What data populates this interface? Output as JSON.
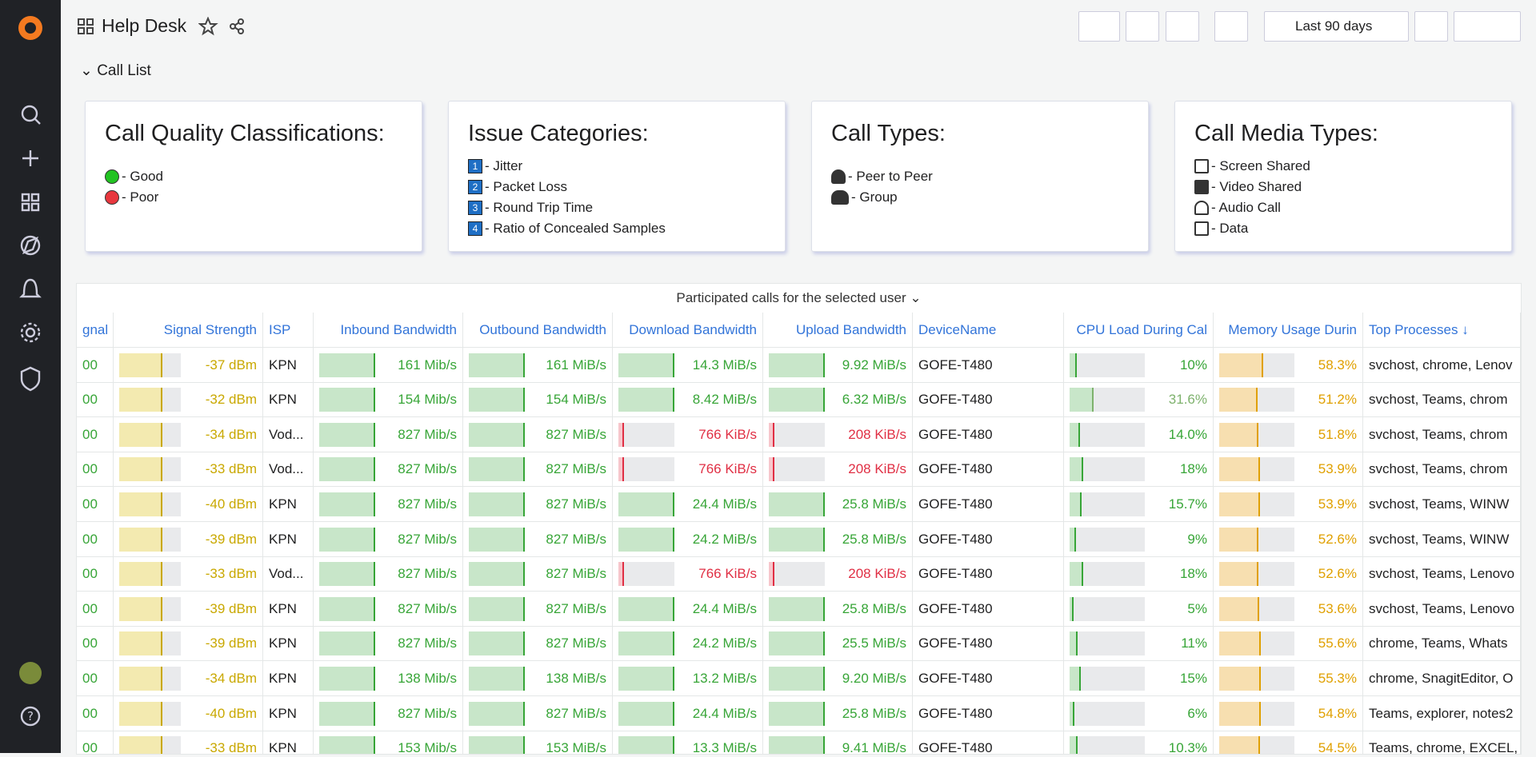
{
  "header": {
    "title": "Help Desk",
    "time_range": "Last 90 days"
  },
  "row_title": "Call List",
  "panels": [
    {
      "title": "Call Quality Classifications:",
      "items": [
        "- Good",
        "- Poor"
      ]
    },
    {
      "title": "Issue Categories:",
      "items": [
        {
          "icon": "1",
          "text": "- Jitter"
        },
        {
          "icon": "2",
          "text": "- Packet Loss"
        },
        {
          "icon": "3",
          "text": "- Round Trip Time"
        },
        {
          "icon": "4",
          "text": "- Ratio of Concealed Samples"
        }
      ]
    },
    {
      "title": "Call Types:",
      "items": [
        "- Peer to Peer",
        "- Group"
      ]
    },
    {
      "title": "Call Media Types:",
      "items": [
        "- Screen Shared",
        "- Video Shared",
        "- Audio Call",
        "- Data"
      ]
    }
  ],
  "table": {
    "title": "Participated calls for the selected user",
    "columns": [
      "gnal",
      "Signal Strength",
      "ISP",
      "Inbound Bandwidth",
      "Outbound Bandwidth",
      "Download Bandwidth",
      "Upload Bandwidth",
      "DeviceName",
      "CPU Load During Cal",
      "Memory Usage Durin",
      "Top Processes"
    ],
    "rows": [
      [
        "00",
        "-37 dBm",
        "KPN",
        "161 Mib/s",
        "161 MiB/s",
        "14.3 MiB/s",
        "9.92 MiB/s",
        "GOFE-T480",
        "10%",
        "58.3%",
        "svchost, chrome, Lenov"
      ],
      [
        "00",
        "-32 dBm",
        "KPN",
        "154 Mib/s",
        "154 MiB/s",
        "8.42 MiB/s",
        "6.32 MiB/s",
        "GOFE-T480",
        "31.6%",
        "51.2%",
        "svchost, Teams, chrom"
      ],
      [
        "00",
        "-34 dBm",
        "Vod...",
        "827 Mib/s",
        "827 MiB/s",
        "766 KiB/s",
        "208 KiB/s",
        "GOFE-T480",
        "14.0%",
        "51.8%",
        "svchost, Teams, chrom"
      ],
      [
        "00",
        "-33 dBm",
        "Vod...",
        "827 Mib/s",
        "827 MiB/s",
        "766 KiB/s",
        "208 KiB/s",
        "GOFE-T480",
        "18%",
        "53.9%",
        "svchost, Teams, chrom"
      ],
      [
        "00",
        "-40 dBm",
        "KPN",
        "827 Mib/s",
        "827 MiB/s",
        "24.4 MiB/s",
        "25.8 MiB/s",
        "GOFE-T480",
        "15.7%",
        "53.9%",
        "svchost, Teams, WINW"
      ],
      [
        "00",
        "-39 dBm",
        "KPN",
        "827 Mib/s",
        "827 MiB/s",
        "24.2 MiB/s",
        "25.8 MiB/s",
        "GOFE-T480",
        "9%",
        "52.6%",
        "svchost, Teams, WINW"
      ],
      [
        "00",
        "-33 dBm",
        "Vod...",
        "827 Mib/s",
        "827 MiB/s",
        "766 KiB/s",
        "208 KiB/s",
        "GOFE-T480",
        "18%",
        "52.6%",
        "svchost, Teams, Lenovo"
      ],
      [
        "00",
        "-39 dBm",
        "KPN",
        "827 Mib/s",
        "827 MiB/s",
        "24.4 MiB/s",
        "25.8 MiB/s",
        "GOFE-T480",
        "5%",
        "53.6%",
        "svchost, Teams, Lenovo"
      ],
      [
        "00",
        "-39 dBm",
        "KPN",
        "827 Mib/s",
        "827 MiB/s",
        "24.2 MiB/s",
        "25.5 MiB/s",
        "GOFE-T480",
        "11%",
        "55.6%",
        "chrome, Teams, Whats"
      ],
      [
        "00",
        "-34 dBm",
        "KPN",
        "138 Mib/s",
        "138 MiB/s",
        "13.2 MiB/s",
        "9.20 MiB/s",
        "GOFE-T480",
        "15%",
        "55.3%",
        "chrome, SnagitEditor, O"
      ],
      [
        "00",
        "-40 dBm",
        "KPN",
        "827 Mib/s",
        "827 MiB/s",
        "24.4 MiB/s",
        "25.8 MiB/s",
        "GOFE-T480",
        "6%",
        "54.8%",
        "Teams, explorer, notes2"
      ],
      [
        "00",
        "-33 dBm",
        "KPN",
        "153 Mib/s",
        "153 MiB/s",
        "13.3 MiB/s",
        "9.41 MiB/s",
        "GOFE-T480",
        "10.3%",
        "54.5%",
        "Teams, chrome, EXCEL,"
      ]
    ]
  }
}
